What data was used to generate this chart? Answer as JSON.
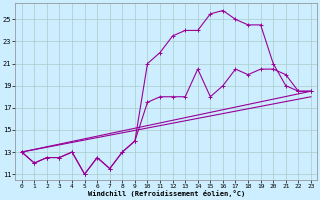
{
  "xlabel": "Windchill (Refroidissement éolien,°C)",
  "background_color": "#cceeff",
  "grid_color": "#aacccc",
  "line_color": "#990099",
  "xlim": [
    -0.5,
    23.5
  ],
  "ylim": [
    10.5,
    26.5
  ],
  "xticks": [
    0,
    1,
    2,
    3,
    4,
    5,
    6,
    7,
    8,
    9,
    10,
    11,
    12,
    13,
    14,
    15,
    16,
    17,
    18,
    19,
    20,
    21,
    22,
    23
  ],
  "yticks": [
    11,
    13,
    15,
    17,
    19,
    21,
    23,
    25
  ],
  "line1_x": [
    0,
    1,
    2,
    3,
    4,
    5,
    6,
    7,
    8,
    9,
    10,
    11,
    12,
    13,
    14,
    15,
    16,
    17,
    18,
    19,
    20,
    21,
    22,
    23
  ],
  "line1_y": [
    13,
    12,
    12.5,
    12.5,
    13,
    11,
    12.5,
    11.5,
    13,
    14,
    21,
    22,
    23.5,
    24,
    24,
    25.5,
    25.8,
    25,
    24.5,
    24.5,
    21,
    19,
    18.5,
    18.5
  ],
  "line2_x": [
    0,
    1,
    2,
    3,
    4,
    5,
    6,
    7,
    8,
    9,
    10,
    11,
    12,
    13,
    14,
    15,
    16,
    17,
    18,
    19,
    20,
    21,
    22,
    23
  ],
  "line2_y": [
    13,
    12,
    12.5,
    12.5,
    13,
    11,
    12.5,
    11.5,
    13,
    14,
    17.5,
    18,
    18,
    18,
    20.5,
    18,
    19,
    20.5,
    20,
    20.5,
    20.5,
    20,
    18.5,
    18.5
  ],
  "line3_x": [
    0,
    23
  ],
  "line3_y": [
    13,
    18.5
  ],
  "line4_x": [
    0,
    23
  ],
  "line4_y": [
    13,
    18.0
  ]
}
